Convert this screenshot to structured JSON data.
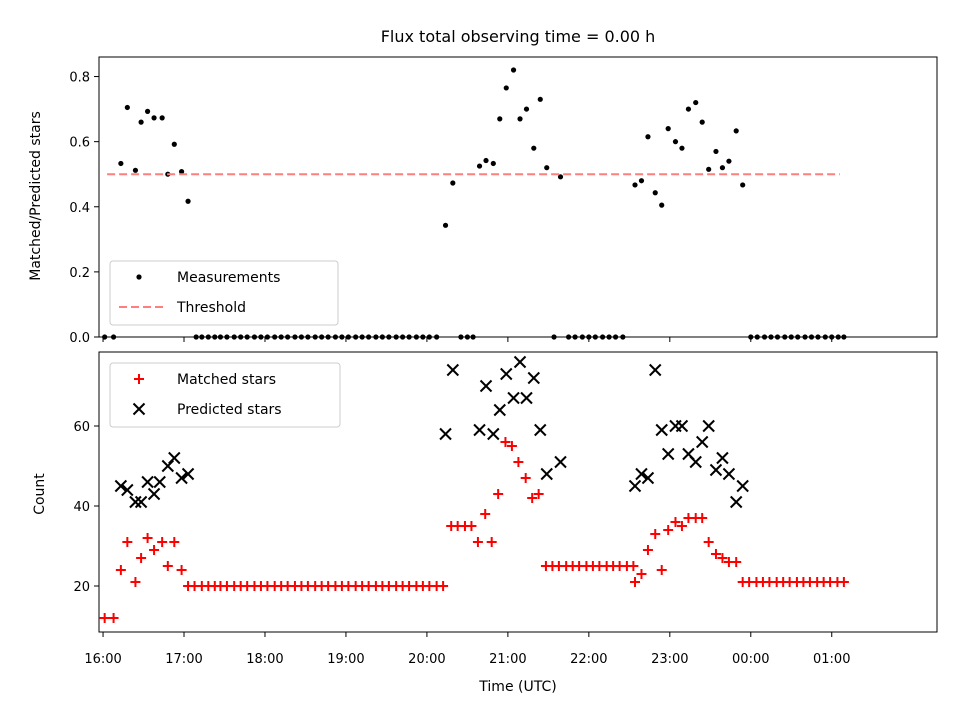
{
  "chart_data": [
    {
      "type": "scatter",
      "title": "Flux total observing time = 0.00 h",
      "xlabel": "",
      "ylabel": "Matched/Predicted stars",
      "ylim": [
        0,
        0.86
      ],
      "yticks": [
        "0.0",
        "0.2",
        "0.4",
        "0.6",
        "0.8"
      ],
      "ytick_values": [
        0,
        0.2,
        0.4,
        0.6,
        0.8
      ],
      "legend_position": "lower-left",
      "series": [
        {
          "name": "Measurements",
          "marker": "dot",
          "color": "#000000",
          "points": [
            [
              16.02,
              0
            ],
            [
              16.13,
              0
            ],
            [
              16.22,
              0.533
            ],
            [
              16.3,
              0.705
            ],
            [
              16.4,
              0.512
            ],
            [
              16.47,
              0.66
            ],
            [
              16.55,
              0.693
            ],
            [
              16.63,
              0.673
            ],
            [
              16.73,
              0.673
            ],
            [
              16.8,
              0.5
            ],
            [
              16.88,
              0.592
            ],
            [
              16.97,
              0.508
            ],
            [
              17.05,
              0.417
            ],
            [
              17.15,
              0
            ],
            [
              17.22,
              0
            ],
            [
              17.3,
              0
            ],
            [
              17.38,
              0
            ],
            [
              17.45,
              0
            ],
            [
              17.53,
              0
            ],
            [
              17.62,
              0
            ],
            [
              17.7,
              0
            ],
            [
              17.78,
              0
            ],
            [
              17.87,
              0
            ],
            [
              17.95,
              0
            ],
            [
              18.03,
              0
            ],
            [
              18.12,
              0
            ],
            [
              18.2,
              0
            ],
            [
              18.28,
              0
            ],
            [
              18.37,
              0
            ],
            [
              18.45,
              0
            ],
            [
              18.53,
              0
            ],
            [
              18.62,
              0
            ],
            [
              18.7,
              0
            ],
            [
              18.78,
              0
            ],
            [
              18.87,
              0
            ],
            [
              18.95,
              0
            ],
            [
              19.03,
              0
            ],
            [
              19.12,
              0
            ],
            [
              19.2,
              0
            ],
            [
              19.28,
              0
            ],
            [
              19.37,
              0
            ],
            [
              19.45,
              0
            ],
            [
              19.53,
              0
            ],
            [
              19.62,
              0
            ],
            [
              19.7,
              0
            ],
            [
              19.78,
              0
            ],
            [
              19.87,
              0
            ],
            [
              19.95,
              0
            ],
            [
              20.03,
              0
            ],
            [
              20.12,
              0
            ],
            [
              20.23,
              0.343
            ],
            [
              20.32,
              0.473
            ],
            [
              20.42,
              0
            ],
            [
              20.5,
              0
            ],
            [
              20.57,
              0
            ],
            [
              20.65,
              0.525
            ],
            [
              20.73,
              0.542
            ],
            [
              20.82,
              0.533
            ],
            [
              20.9,
              0.67
            ],
            [
              20.98,
              0.765
            ],
            [
              21.07,
              0.82
            ],
            [
              21.15,
              0.67
            ],
            [
              21.23,
              0.7
            ],
            [
              21.32,
              0.58
            ],
            [
              21.4,
              0.73
            ],
            [
              21.48,
              0.52
            ],
            [
              21.57,
              0
            ],
            [
              21.65,
              0.492
            ],
            [
              21.75,
              0
            ],
            [
              21.83,
              0
            ],
            [
              21.92,
              0
            ],
            [
              22.0,
              0
            ],
            [
              22.08,
              0
            ],
            [
              22.17,
              0
            ],
            [
              22.25,
              0
            ],
            [
              22.33,
              0
            ],
            [
              22.42,
              0
            ],
            [
              22.57,
              0.467
            ],
            [
              22.65,
              0.48
            ],
            [
              22.73,
              0.615
            ],
            [
              22.82,
              0.443
            ],
            [
              22.9,
              0.405
            ],
            [
              22.98,
              0.64
            ],
            [
              23.07,
              0.6
            ],
            [
              23.15,
              0.58
            ],
            [
              23.23,
              0.7
            ],
            [
              23.32,
              0.72
            ],
            [
              23.4,
              0.66
            ],
            [
              23.48,
              0.515
            ],
            [
              23.57,
              0.57
            ],
            [
              23.65,
              0.52
            ],
            [
              23.73,
              0.54
            ],
            [
              23.82,
              0.633
            ],
            [
              23.9,
              0.467
            ],
            [
              24.0,
              0
            ],
            [
              24.08,
              0
            ],
            [
              24.17,
              0
            ],
            [
              24.25,
              0
            ],
            [
              24.33,
              0
            ],
            [
              24.42,
              0
            ],
            [
              24.5,
              0
            ],
            [
              24.58,
              0
            ],
            [
              24.67,
              0
            ],
            [
              24.75,
              0
            ],
            [
              24.83,
              0
            ],
            [
              24.92,
              0
            ],
            [
              25.0,
              0
            ],
            [
              25.08,
              0
            ],
            [
              25.15,
              0
            ]
          ]
        },
        {
          "name": "Threshold",
          "marker": "dashed-line",
          "color": "#ff7f7f",
          "points": [
            [
              16.05,
              0.5
            ],
            [
              25.1,
              0.5
            ]
          ]
        }
      ]
    },
    {
      "type": "scatter",
      "title": "",
      "xlabel": "Time (UTC)",
      "ylabel": "Count",
      "ylim": [
        8.5,
        78.5
      ],
      "yticks": [
        "20",
        "40",
        "60"
      ],
      "ytick_values": [
        20,
        40,
        60
      ],
      "xlim": [
        15.95,
        26.3
      ],
      "xticks": [
        "16:00",
        "17:00",
        "18:00",
        "19:00",
        "20:00",
        "21:00",
        "22:00",
        "23:00",
        "00:00",
        "01:00"
      ],
      "xtick_values": [
        16,
        17,
        18,
        19,
        20,
        21,
        22,
        23,
        24,
        25
      ],
      "legend_position": "upper-left",
      "series": [
        {
          "name": "Matched stars",
          "marker": "plus",
          "color": "#ff0000",
          "points": [
            [
              16.02,
              12
            ],
            [
              16.13,
              12
            ],
            [
              16.22,
              24
            ],
            [
              16.3,
              31
            ],
            [
              16.4,
              21
            ],
            [
              16.47,
              27
            ],
            [
              16.55,
              32
            ],
            [
              16.63,
              29
            ],
            [
              16.73,
              31
            ],
            [
              16.8,
              25
            ],
            [
              16.88,
              31
            ],
            [
              16.97,
              24
            ],
            [
              17.05,
              20
            ],
            [
              17.13,
              20
            ],
            [
              17.22,
              20
            ],
            [
              17.3,
              20
            ],
            [
              17.38,
              20
            ],
            [
              17.45,
              20
            ],
            [
              17.53,
              20
            ],
            [
              17.62,
              20
            ],
            [
              17.7,
              20
            ],
            [
              17.78,
              20
            ],
            [
              17.87,
              20
            ],
            [
              17.95,
              20
            ],
            [
              18.03,
              20
            ],
            [
              18.12,
              20
            ],
            [
              18.2,
              20
            ],
            [
              18.28,
              20
            ],
            [
              18.37,
              20
            ],
            [
              18.45,
              20
            ],
            [
              18.53,
              20
            ],
            [
              18.62,
              20
            ],
            [
              18.7,
              20
            ],
            [
              18.78,
              20
            ],
            [
              18.87,
              20
            ],
            [
              18.95,
              20
            ],
            [
              19.03,
              20
            ],
            [
              19.12,
              20
            ],
            [
              19.2,
              20
            ],
            [
              19.28,
              20
            ],
            [
              19.37,
              20
            ],
            [
              19.45,
              20
            ],
            [
              19.53,
              20
            ],
            [
              19.62,
              20
            ],
            [
              19.7,
              20
            ],
            [
              19.78,
              20
            ],
            [
              19.87,
              20
            ],
            [
              19.95,
              20
            ],
            [
              20.03,
              20
            ],
            [
              20.12,
              20
            ],
            [
              20.2,
              20
            ],
            [
              20.3,
              35
            ],
            [
              20.38,
              35
            ],
            [
              20.47,
              35
            ],
            [
              20.55,
              35
            ],
            [
              20.63,
              31
            ],
            [
              20.72,
              38
            ],
            [
              20.8,
              31
            ],
            [
              20.88,
              43
            ],
            [
              20.97,
              56
            ],
            [
              21.05,
              55
            ],
            [
              21.13,
              51
            ],
            [
              21.22,
              47
            ],
            [
              21.3,
              42
            ],
            [
              21.38,
              43
            ],
            [
              21.47,
              25
            ],
            [
              21.55,
              25
            ],
            [
              21.63,
              25
            ],
            [
              21.72,
              25
            ],
            [
              21.8,
              25
            ],
            [
              21.88,
              25
            ],
            [
              21.97,
              25
            ],
            [
              22.05,
              25
            ],
            [
              22.13,
              25
            ],
            [
              22.22,
              25
            ],
            [
              22.3,
              25
            ],
            [
              22.38,
              25
            ],
            [
              22.47,
              25
            ],
            [
              22.55,
              25
            ],
            [
              22.57,
              21
            ],
            [
              22.65,
              23
            ],
            [
              22.73,
              29
            ],
            [
              22.82,
              33
            ],
            [
              22.9,
              24
            ],
            [
              22.98,
              34
            ],
            [
              23.07,
              36
            ],
            [
              23.15,
              35
            ],
            [
              23.23,
              37
            ],
            [
              23.32,
              37
            ],
            [
              23.4,
              37
            ],
            [
              23.48,
              31
            ],
            [
              23.57,
              28
            ],
            [
              23.65,
              27
            ],
            [
              23.73,
              26
            ],
            [
              23.82,
              26
            ],
            [
              23.9,
              21
            ],
            [
              23.98,
              21
            ],
            [
              24.07,
              21
            ],
            [
              24.15,
              21
            ],
            [
              24.23,
              21
            ],
            [
              24.32,
              21
            ],
            [
              24.4,
              21
            ],
            [
              24.48,
              21
            ],
            [
              24.57,
              21
            ],
            [
              24.65,
              21
            ],
            [
              24.73,
              21
            ],
            [
              24.82,
              21
            ],
            [
              24.9,
              21
            ],
            [
              24.98,
              21
            ],
            [
              25.07,
              21
            ],
            [
              25.15,
              21
            ]
          ]
        },
        {
          "name": "Predicted stars",
          "marker": "x",
          "color": "#000000",
          "points": [
            [
              16.22,
              45
            ],
            [
              16.3,
              44
            ],
            [
              16.4,
              41
            ],
            [
              16.47,
              41
            ],
            [
              16.55,
              46
            ],
            [
              16.63,
              43
            ],
            [
              16.7,
              46
            ],
            [
              16.8,
              50
            ],
            [
              16.88,
              52
            ],
            [
              16.97,
              47
            ],
            [
              17.05,
              48
            ],
            [
              20.23,
              58
            ],
            [
              20.32,
              74
            ],
            [
              20.65,
              59
            ],
            [
              20.73,
              70
            ],
            [
              20.82,
              58
            ],
            [
              20.9,
              64
            ],
            [
              20.98,
              73
            ],
            [
              21.07,
              67
            ],
            [
              21.15,
              76
            ],
            [
              21.23,
              67
            ],
            [
              21.32,
              72
            ],
            [
              21.4,
              59
            ],
            [
              21.48,
              48
            ],
            [
              21.65,
              51
            ],
            [
              22.57,
              45
            ],
            [
              22.65,
              48
            ],
            [
              22.73,
              47
            ],
            [
              22.82,
              74
            ],
            [
              22.9,
              59
            ],
            [
              22.98,
              53
            ],
            [
              23.07,
              60
            ],
            [
              23.15,
              60
            ],
            [
              23.23,
              53
            ],
            [
              23.32,
              51
            ],
            [
              23.4,
              56
            ],
            [
              23.48,
              60
            ],
            [
              23.57,
              49
            ],
            [
              23.65,
              52
            ],
            [
              23.73,
              48
            ],
            [
              23.82,
              41
            ],
            [
              23.9,
              45
            ]
          ]
        }
      ]
    }
  ]
}
